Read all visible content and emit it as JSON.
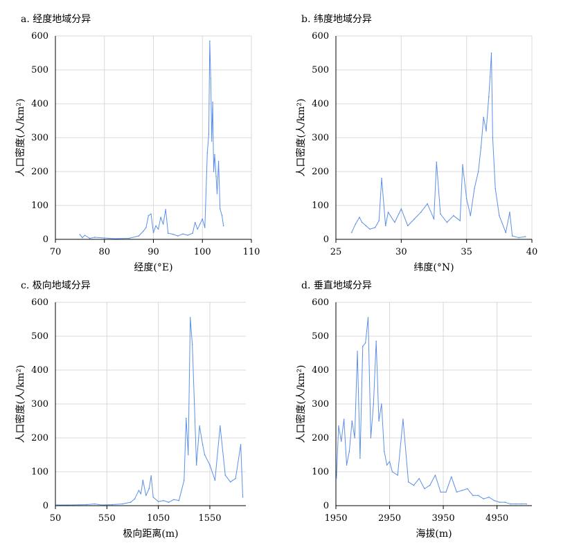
{
  "colors": {
    "line": "#5b8fe8",
    "grid": "#d9d9d9",
    "axis": "#000000"
  },
  "chart_data": [
    {
      "type": "line",
      "title": "a. 经度地域分异",
      "xlabel": "经度(°E)",
      "ylabel": "人口密度(人/km²)",
      "xlim": [
        70,
        110
      ],
      "ylim": [
        0,
        600
      ],
      "xticks": [
        "70",
        "80",
        "90",
        "100",
        "110"
      ],
      "yticks": [
        "0",
        "100",
        "200",
        "300",
        "400",
        "500",
        "600"
      ],
      "grid": true,
      "series": [
        {
          "x": [
            75,
            75.5,
            76,
            77,
            78,
            80,
            82,
            85,
            87,
            88,
            88.5,
            89,
            89.5,
            90,
            90.5,
            91,
            91.5,
            92,
            92.5,
            93,
            94,
            95,
            96,
            97,
            98,
            98.5,
            99,
            99.5,
            100,
            100.5,
            101,
            101.3,
            101.5,
            101.7,
            101.9,
            102.1,
            102.3,
            102.5,
            102.8,
            103,
            103.3,
            103.6,
            104,
            104.3
          ],
          "y": [
            14,
            5,
            12,
            3,
            6,
            4,
            2,
            3,
            10,
            25,
            35,
            70,
            75,
            20,
            40,
            30,
            65,
            45,
            88,
            18,
            15,
            10,
            16,
            12,
            18,
            50,
            30,
            45,
            60,
            35,
            255,
            310,
            585,
            475,
            290,
            405,
            200,
            250,
            185,
            135,
            230,
            90,
            70,
            40
          ]
        }
      ]
    },
    {
      "type": "line",
      "title": "b. 纬度地域分异",
      "xlabel": "纬度(°N)",
      "ylabel": "人口密度(人/km²)",
      "xlim": [
        25,
        40
      ],
      "ylim": [
        0,
        600
      ],
      "xticks": [
        "25",
        "30",
        "35",
        "40"
      ],
      "yticks": [
        "0",
        "100",
        "200",
        "300",
        "400",
        "500",
        "600"
      ],
      "grid": true,
      "series": [
        {
          "x": [
            26.2,
            26.5,
            26.8,
            27,
            27.3,
            27.6,
            28,
            28.3,
            28.5,
            28.8,
            29,
            29.5,
            30,
            30.5,
            31,
            31.5,
            32,
            32.5,
            32.7,
            33,
            33.5,
            34,
            34.5,
            34.7,
            35,
            35.3,
            35.6,
            35.9,
            36.1,
            36.3,
            36.5,
            36.7,
            36.8,
            36.9,
            37,
            37.2,
            37.5,
            38,
            38.3,
            38.5,
            39,
            39.5
          ],
          "y": [
            20,
            45,
            65,
            50,
            40,
            30,
            35,
            55,
            180,
            40,
            80,
            50,
            90,
            40,
            60,
            80,
            105,
            60,
            228,
            75,
            50,
            70,
            55,
            220,
            120,
            70,
            150,
            200,
            270,
            360,
            320,
            420,
            480,
            550,
            300,
            150,
            70,
            20,
            80,
            10,
            5,
            8
          ]
        }
      ]
    },
    {
      "type": "line",
      "title": "c. 极向地域分异",
      "xlabel": "极向距离(m)",
      "ylabel": "人口密度(人/km²)",
      "xlim": [
        50,
        1900
      ],
      "ylim": [
        0,
        600
      ],
      "xticks": [
        "50",
        "550",
        "1050",
        "1550"
      ],
      "yticks": [
        "0",
        "100",
        "200",
        "300",
        "400",
        "500",
        "600"
      ],
      "grid": true,
      "series": [
        {
          "x": [
            60,
            200,
            350,
            430,
            500,
            600,
            700,
            780,
            820,
            860,
            880,
            900,
            930,
            960,
            980,
            1000,
            1050,
            1100,
            1150,
            1200,
            1250,
            1300,
            1320,
            1340,
            1360,
            1380,
            1400,
            1420,
            1450,
            1480,
            1500,
            1550,
            1600,
            1650,
            1700,
            1750,
            1800,
            1850,
            1870
          ],
          "y": [
            2,
            2,
            3,
            5,
            2,
            3,
            5,
            10,
            20,
            45,
            35,
            75,
            30,
            50,
            88,
            25,
            12,
            15,
            10,
            18,
            15,
            75,
            258,
            150,
            555,
            475,
            300,
            120,
            235,
            180,
            150,
            120,
            75,
            235,
            90,
            70,
            80,
            180,
            25
          ]
        }
      ]
    },
    {
      "type": "line",
      "title": "d. 垂直地域分异",
      "xlabel": "海拔(m)",
      "ylabel": "人口密度(人/km²)",
      "xlim": [
        1950,
        5600
      ],
      "ylim": [
        0,
        600
      ],
      "xticks": [
        "1950",
        "2950",
        "3950",
        "4950"
      ],
      "yticks": [
        "0",
        "100",
        "200",
        "300",
        "400",
        "500",
        "600"
      ],
      "grid": true,
      "series": [
        {
          "x": [
            1960,
            2000,
            2050,
            2100,
            2150,
            2200,
            2250,
            2300,
            2350,
            2400,
            2450,
            2500,
            2550,
            2600,
            2650,
            2700,
            2750,
            2800,
            2850,
            2900,
            2950,
            3000,
            3100,
            3200,
            3300,
            3400,
            3500,
            3600,
            3700,
            3800,
            3900,
            4000,
            4100,
            4200,
            4300,
            4400,
            4500,
            4600,
            4700,
            4800,
            4900,
            5000,
            5100,
            5200,
            5300,
            5400,
            5500
          ],
          "y": [
            80,
            235,
            190,
            255,
            120,
            160,
            250,
            200,
            455,
            140,
            470,
            480,
            555,
            200,
            300,
            485,
            250,
            300,
            160,
            120,
            130,
            100,
            90,
            255,
            70,
            60,
            80,
            50,
            60,
            90,
            40,
            40,
            85,
            40,
            45,
            50,
            30,
            30,
            20,
            25,
            15,
            10,
            10,
            5,
            5,
            5,
            5
          ]
        }
      ]
    }
  ]
}
